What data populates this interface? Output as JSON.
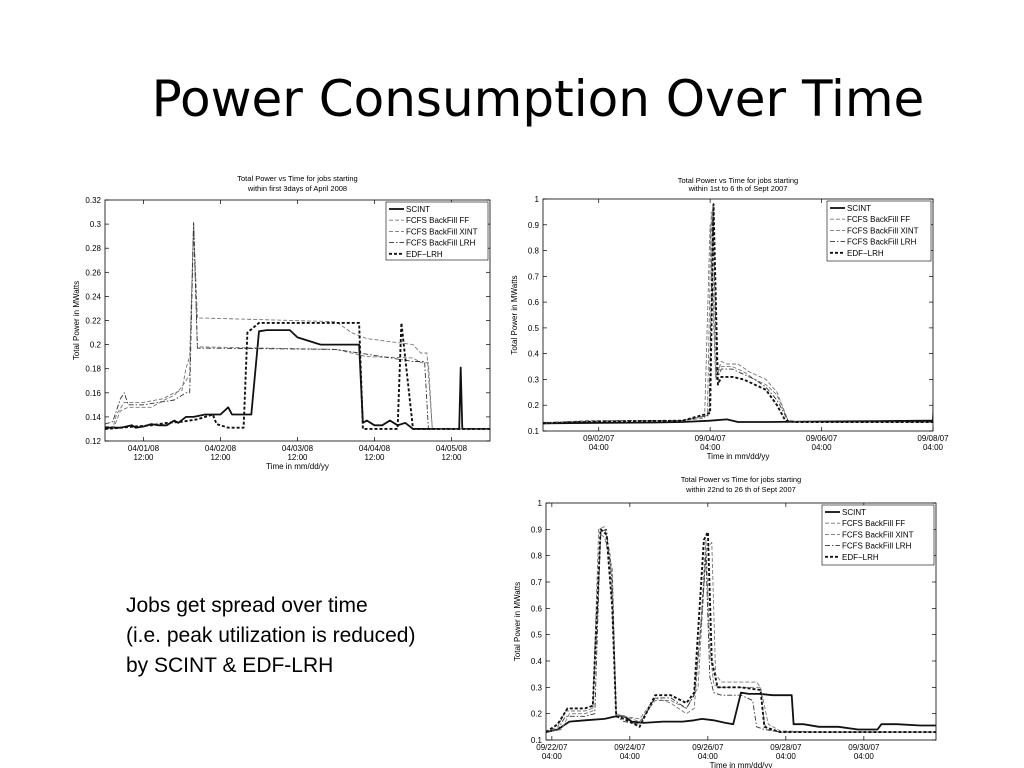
{
  "slide": {
    "title": "Power Consumption Over Time",
    "caption_lines": [
      "Jobs get spread over time",
      "(i.e. peak utilization is reduced)",
      "by SCINT & EDF-LRH"
    ]
  },
  "chart_data": [
    {
      "type": "line",
      "title": [
        "Total Power vs Time for jobs starting",
        "within first 3days of April 2008"
      ],
      "xlabel": "Time in mm/dd/yy",
      "ylabel": "Total Power in MWatts",
      "xlim": [
        0,
        5
      ],
      "ylim": [
        0.12,
        0.32
      ],
      "yticks": [
        0.12,
        0.14,
        0.16,
        0.18,
        0.2,
        0.22,
        0.24,
        0.26,
        0.28,
        0.3,
        0.32
      ],
      "ytick_labels": [
        "0.12",
        "0.14",
        "0.16",
        "0.18",
        "0.2",
        "0.22",
        "0.24",
        "0.26",
        "0.28",
        "0.3",
        "0.32"
      ],
      "xticks": [
        0.5,
        1.5,
        2.5,
        3.5,
        4.5
      ],
      "xtick_labels": [
        [
          "04/01/08",
          "12:00"
        ],
        [
          "04/02/08",
          "12:00"
        ],
        [
          "04/03/08",
          "12:00"
        ],
        [
          "04/04/08",
          "12:00"
        ],
        [
          "04/05/08",
          "12:00"
        ]
      ],
      "grid": false,
      "legend_position": "top-right",
      "series": [
        {
          "name": "SCINT",
          "style": "solid",
          "x": [
            0,
            0.2,
            0.35,
            0.4,
            0.5,
            0.6,
            0.7,
            0.8,
            0.9,
            0.95,
            1.05,
            1.15,
            1.3,
            1.5,
            1.6,
            1.65,
            1.8,
            1.9,
            2.0,
            2.1,
            2.4,
            2.5,
            2.8,
            2.95,
            3.0,
            3.3,
            3.35,
            3.4,
            3.5,
            3.6,
            3.7,
            3.8,
            3.9,
            4.0,
            4.5,
            4.6,
            4.62,
            4.64,
            4.7,
            5.0
          ],
          "y": [
            0.131,
            0.131,
            0.133,
            0.131,
            0.132,
            0.134,
            0.133,
            0.133,
            0.137,
            0.135,
            0.14,
            0.14,
            0.142,
            0.142,
            0.148,
            0.142,
            0.142,
            0.142,
            0.211,
            0.212,
            0.212,
            0.206,
            0.2,
            0.2,
            0.2,
            0.2,
            0.135,
            0.137,
            0.133,
            0.133,
            0.137,
            0.133,
            0.135,
            0.13,
            0.13,
            0.13,
            0.181,
            0.13,
            0.13,
            0.13
          ]
        },
        {
          "name": "FCFS BackFill FF",
          "style": "dashed",
          "x": [
            0,
            0.1,
            0.15,
            0.25,
            0.5,
            0.75,
            0.9,
            1.0,
            1.05,
            1.1,
            1.15,
            1.2,
            1.3,
            3.0,
            3.2,
            3.4,
            4.0,
            4.1,
            4.18,
            4.25,
            4.4,
            5.0
          ],
          "y": [
            0.13,
            0.13,
            0.142,
            0.152,
            0.152,
            0.155,
            0.16,
            0.162,
            0.18,
            0.19,
            0.3,
            0.222,
            0.222,
            0.219,
            0.21,
            0.205,
            0.2,
            0.193,
            0.193,
            0.13,
            0.13,
            0.13
          ]
        },
        {
          "name": "FCFS BackFill XINT",
          "style": "dashed",
          "x": [
            0,
            0.12,
            0.2,
            0.3,
            0.6,
            0.8,
            0.9,
            1.0,
            1.1,
            1.15,
            1.2,
            1.3,
            3.0,
            3.2,
            3.4,
            4.0,
            4.1,
            4.2,
            4.25,
            4.4,
            5.0
          ],
          "y": [
            0.132,
            0.132,
            0.145,
            0.148,
            0.148,
            0.155,
            0.158,
            0.165,
            0.175,
            0.302,
            0.198,
            0.198,
            0.196,
            0.193,
            0.19,
            0.189,
            0.185,
            0.185,
            0.13,
            0.13,
            0.13
          ]
        },
        {
          "name": "FCFS BackFill LRH",
          "style": "dashdot",
          "x": [
            0,
            0.1,
            0.2,
            0.25,
            0.3,
            0.5,
            0.7,
            0.9,
            1.05,
            1.1,
            1.15,
            1.2,
            1.4,
            3.0,
            3.2,
            3.5,
            4.0,
            4.15,
            4.2,
            4.25,
            4.4,
            5.0
          ],
          "y": [
            0.134,
            0.136,
            0.155,
            0.16,
            0.15,
            0.15,
            0.152,
            0.154,
            0.16,
            0.16,
            0.301,
            0.197,
            0.197,
            0.196,
            0.194,
            0.191,
            0.186,
            0.186,
            0.13,
            0.13,
            0.13,
            0.13
          ]
        },
        {
          "name": "EDF−LRH",
          "style": "dotted-thick",
          "x": [
            0,
            0.2,
            0.4,
            0.6,
            0.8,
            1.0,
            1.2,
            1.4,
            1.45,
            1.6,
            1.8,
            1.85,
            2.0,
            3.0,
            3.3,
            3.35,
            3.6,
            3.8,
            3.85,
            4.0,
            5.0
          ],
          "y": [
            0.13,
            0.131,
            0.132,
            0.133,
            0.135,
            0.136,
            0.138,
            0.142,
            0.134,
            0.131,
            0.131,
            0.21,
            0.218,
            0.218,
            0.218,
            0.13,
            0.13,
            0.13,
            0.218,
            0.13,
            0.13
          ]
        }
      ]
    },
    {
      "type": "line",
      "title": [
        "Total Power vs Time for jobs starting",
        "within 1st to 6 th of Sept 2007"
      ],
      "xlabel": "Time in mm/dd/yy",
      "ylabel": "Total Power in MWatts",
      "xlim": [
        0,
        7
      ],
      "ylim": [
        0.1,
        1.0
      ],
      "yticks": [
        0.1,
        0.2,
        0.3,
        0.4,
        0.5,
        0.6,
        0.7,
        0.8,
        0.9,
        1.0
      ],
      "ytick_labels": [
        "0.1",
        "0.2",
        "0.3",
        "0.4",
        "0.5",
        "0.6",
        "0.7",
        "0.8",
        "0.9",
        "1"
      ],
      "xticks": [
        1,
        3,
        5,
        7
      ],
      "xtick_labels": [
        [
          "09/02/07",
          "04:00"
        ],
        [
          "09/04/07",
          "04:00"
        ],
        [
          "09/06/07",
          "04:00"
        ],
        [
          "09/08/07",
          "04:00"
        ]
      ],
      "grid": false,
      "legend_position": "top-right",
      "series": [
        {
          "name": "SCINT",
          "style": "solid",
          "x": [
            0,
            1.0,
            2.0,
            2.5,
            3.0,
            3.3,
            3.5,
            4.0,
            5.0,
            6.0,
            6.9,
            7.0,
            7.05,
            7.15,
            7.3,
            7.5,
            8.0
          ],
          "y": [
            0.13,
            0.132,
            0.133,
            0.135,
            0.14,
            0.145,
            0.135,
            0.135,
            0.137,
            0.138,
            0.14,
            0.14,
            0.39,
            0.14,
            0.13,
            0.13,
            0.13
          ]
        },
        {
          "name": "FCFS BackFill FF",
          "style": "dashed",
          "x": [
            0,
            0.8,
            1.5,
            2.5,
            2.9,
            3.0,
            3.1,
            3.2,
            3.3,
            3.5,
            3.7,
            4.0,
            4.2,
            4.4,
            4.6,
            8.0
          ],
          "y": [
            0.13,
            0.14,
            0.14,
            0.14,
            0.15,
            0.9,
            0.3,
            0.37,
            0.36,
            0.36,
            0.33,
            0.3,
            0.25,
            0.14,
            0.135,
            0.135
          ]
        },
        {
          "name": "FCFS BackFill XINT",
          "style": "dashed",
          "x": [
            0,
            0.8,
            1.5,
            2.5,
            2.95,
            3.02,
            3.1,
            3.2,
            3.4,
            3.6,
            3.8,
            4.0,
            4.2,
            4.4,
            4.6,
            8.0
          ],
          "y": [
            0.132,
            0.14,
            0.14,
            0.14,
            0.16,
            0.95,
            0.32,
            0.35,
            0.35,
            0.33,
            0.3,
            0.28,
            0.24,
            0.14,
            0.135,
            0.135
          ]
        },
        {
          "name": "FCFS BackFill LRH",
          "style": "dashdot",
          "x": [
            0,
            0.8,
            1.5,
            2.5,
            2.98,
            3.05,
            3.12,
            3.2,
            3.4,
            3.6,
            3.8,
            4.0,
            4.2,
            4.4,
            4.6,
            8.0
          ],
          "y": [
            0.133,
            0.138,
            0.14,
            0.14,
            0.16,
            0.97,
            0.3,
            0.34,
            0.34,
            0.32,
            0.3,
            0.27,
            0.22,
            0.14,
            0.135,
            0.135
          ]
        },
        {
          "name": "EDF−LRH",
          "style": "dotted-thick",
          "x": [
            0,
            0.8,
            1.5,
            2.5,
            3.0,
            3.06,
            3.14,
            3.2,
            3.4,
            3.6,
            3.8,
            4.0,
            4.2,
            4.35,
            4.5,
            8.0
          ],
          "y": [
            0.13,
            0.135,
            0.138,
            0.14,
            0.17,
            0.98,
            0.28,
            0.31,
            0.31,
            0.3,
            0.28,
            0.26,
            0.2,
            0.14,
            0.135,
            0.135
          ]
        }
      ]
    },
    {
      "type": "line",
      "title": [
        "Total Power vs Time for jobs starting",
        "within 22nd to 26 th of Sept 2007"
      ],
      "xlabel": "Time in mm/dd/yy",
      "ylabel": "Total Power in MWatts",
      "xlim": [
        0,
        10
      ],
      "ylim": [
        0.1,
        1.0
      ],
      "yticks": [
        0.1,
        0.2,
        0.3,
        0.4,
        0.5,
        0.6,
        0.7,
        0.8,
        0.9,
        1.0
      ],
      "ytick_labels": [
        "0.1",
        "0.2",
        "0.3",
        "0.4",
        "0.5",
        "0.6",
        "0.7",
        "0.8",
        "0.9",
        "1"
      ],
      "xticks": [
        0.15,
        2.15,
        4.15,
        6.15,
        8.15
      ],
      "xtick_labels": [
        [
          "09/22/07",
          "04:00"
        ],
        [
          "09/24/07",
          "04:00"
        ],
        [
          "09/26/07",
          "04:00"
        ],
        [
          "09/28/07",
          "04:00"
        ],
        [
          "09/30/07",
          "04:00"
        ]
      ],
      "grid": false,
      "legend_position": "top-right",
      "series": [
        {
          "name": "SCINT",
          "style": "solid",
          "x": [
            0,
            0.3,
            0.6,
            1.0,
            1.5,
            1.8,
            2.0,
            2.2,
            2.5,
            3.0,
            3.5,
            3.8,
            4.0,
            4.3,
            4.6,
            4.8,
            5.0,
            5.2,
            5.5,
            5.8,
            6.1,
            6.3,
            6.35,
            6.6,
            7.0,
            7.5,
            8.0,
            8.5,
            8.6,
            9.0,
            9.6,
            10.0
          ],
          "y": [
            0.13,
            0.14,
            0.17,
            0.175,
            0.18,
            0.19,
            0.19,
            0.17,
            0.165,
            0.17,
            0.17,
            0.175,
            0.18,
            0.175,
            0.165,
            0.16,
            0.28,
            0.275,
            0.275,
            0.27,
            0.27,
            0.27,
            0.16,
            0.16,
            0.15,
            0.15,
            0.14,
            0.14,
            0.16,
            0.16,
            0.155,
            0.155
          ]
        },
        {
          "name": "FCFS BackFill FF",
          "style": "dashed",
          "x": [
            0,
            0.4,
            0.6,
            1.0,
            1.2,
            1.4,
            1.5,
            1.7,
            1.8,
            2.0,
            2.4,
            2.8,
            3.2,
            3.6,
            3.8,
            3.95,
            4.1,
            4.2,
            4.3,
            4.45,
            4.6,
            5.0,
            5.5,
            5.6,
            5.7,
            6.0,
            7.0,
            10.0
          ],
          "y": [
            0.13,
            0.14,
            0.2,
            0.2,
            0.21,
            0.88,
            0.87,
            0.75,
            0.19,
            0.19,
            0.18,
            0.26,
            0.24,
            0.2,
            0.22,
            0.5,
            0.86,
            0.45,
            0.31,
            0.3,
            0.3,
            0.3,
            0.3,
            0.16,
            0.14,
            0.13,
            0.13,
            0.13
          ]
        },
        {
          "name": "FCFS BackFill XINT",
          "style": "dashed",
          "x": [
            0,
            0.3,
            0.5,
            1.0,
            1.2,
            1.35,
            1.5,
            1.65,
            1.8,
            2.0,
            2.4,
            2.8,
            3.2,
            3.6,
            3.9,
            4.1,
            4.25,
            4.35,
            4.5,
            5.0,
            5.4,
            5.5,
            5.7,
            6.0,
            7.0,
            10.0
          ],
          "y": [
            0.13,
            0.15,
            0.21,
            0.21,
            0.22,
            0.9,
            0.91,
            0.8,
            0.2,
            0.19,
            0.17,
            0.25,
            0.25,
            0.22,
            0.3,
            0.82,
            0.85,
            0.35,
            0.32,
            0.32,
            0.32,
            0.3,
            0.16,
            0.135,
            0.13,
            0.13
          ]
        },
        {
          "name": "FCFS BackFill LRH",
          "style": "dashdot",
          "x": [
            0,
            0.3,
            0.5,
            1.0,
            1.25,
            1.4,
            1.55,
            1.7,
            1.8,
            2.0,
            2.4,
            2.8,
            3.2,
            3.6,
            3.8,
            4.0,
            4.1,
            4.2,
            4.3,
            4.5,
            5.0,
            5.3,
            5.4,
            5.6,
            6.0,
            7.0,
            10.0
          ],
          "y": [
            0.13,
            0.14,
            0.19,
            0.19,
            0.2,
            0.89,
            0.9,
            0.7,
            0.19,
            0.17,
            0.16,
            0.26,
            0.26,
            0.22,
            0.27,
            0.58,
            0.8,
            0.34,
            0.28,
            0.27,
            0.27,
            0.25,
            0.15,
            0.14,
            0.13,
            0.13,
            0.13
          ]
        },
        {
          "name": "EDF−LRH",
          "style": "dotted-thick",
          "x": [
            0,
            0.3,
            0.55,
            1.0,
            1.2,
            1.4,
            1.55,
            1.7,
            1.8,
            2.0,
            2.4,
            2.8,
            3.2,
            3.6,
            3.8,
            4.05,
            4.15,
            4.25,
            4.4,
            5.0,
            5.5,
            5.6,
            5.8,
            6.0,
            7.0,
            10.0
          ],
          "y": [
            0.13,
            0.16,
            0.22,
            0.22,
            0.23,
            0.9,
            0.88,
            0.6,
            0.19,
            0.18,
            0.15,
            0.27,
            0.27,
            0.24,
            0.28,
            0.86,
            0.89,
            0.4,
            0.3,
            0.3,
            0.29,
            0.15,
            0.14,
            0.13,
            0.13,
            0.13
          ]
        }
      ]
    }
  ]
}
